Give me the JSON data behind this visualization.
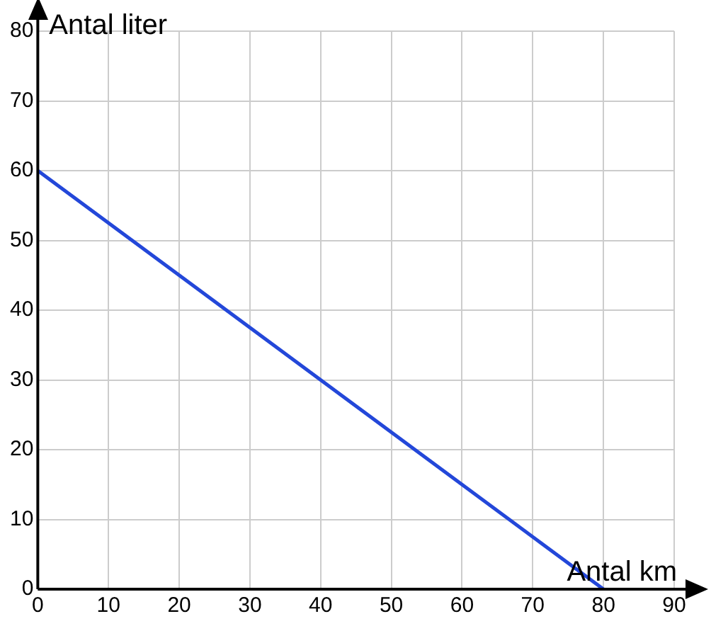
{
  "chart_data": {
    "type": "line",
    "xlabel": "Antal km",
    "ylabel": "Antal liter",
    "x": [
      0,
      80
    ],
    "series": [
      {
        "color": "#2347d9",
        "values": [
          60,
          0
        ]
      }
    ],
    "xlim": [
      0,
      90
    ],
    "ylim": [
      0,
      80
    ],
    "xticks": [
      0,
      10,
      20,
      30,
      40,
      50,
      60,
      70,
      80,
      90
    ],
    "yticks": [
      0,
      10,
      20,
      30,
      40,
      50,
      60,
      70,
      80
    ],
    "grid": true,
    "legend": false,
    "marker": "none",
    "line_style": "solid"
  }
}
